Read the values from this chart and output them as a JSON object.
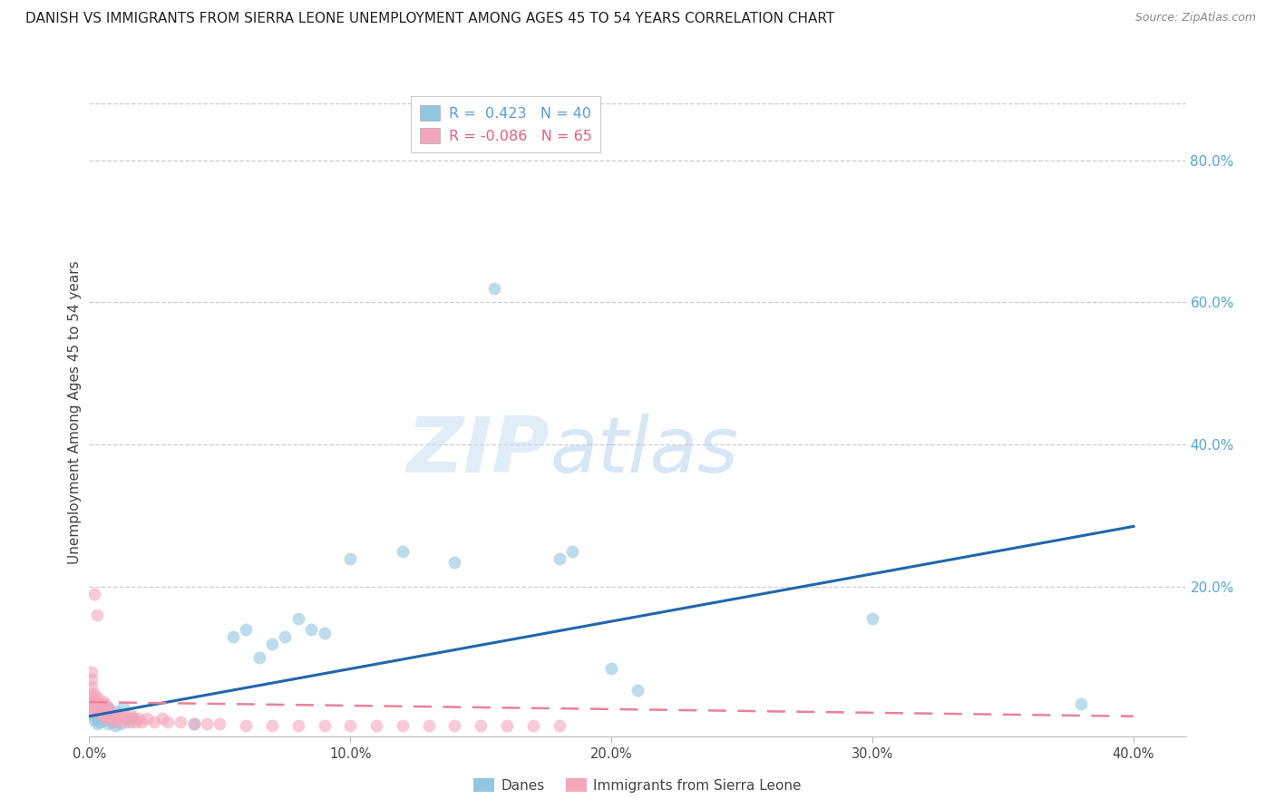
{
  "title": "DANISH VS IMMIGRANTS FROM SIERRA LEONE UNEMPLOYMENT AMONG AGES 45 TO 54 YEARS CORRELATION CHART",
  "source": "Source: ZipAtlas.com",
  "ylabel": "Unemployment Among Ages 45 to 54 years",
  "xlim": [
    0.0,
    0.42
  ],
  "ylim": [
    -0.01,
    0.9
  ],
  "xticks": [
    0.0,
    0.1,
    0.2,
    0.3,
    0.4
  ],
  "xtick_labels": [
    "0.0%",
    "10.0%",
    "20.0%",
    "30.0%",
    "40.0%"
  ],
  "right_yticks": [
    0.2,
    0.4,
    0.6,
    0.8
  ],
  "right_ytick_labels": [
    "20.0%",
    "40.0%",
    "60.0%",
    "80.0%"
  ],
  "blue_color": "#92c5de",
  "pink_color": "#f4a6bb",
  "blue_line_color": "#2166ac",
  "pink_line_color": "#e8819a",
  "right_axis_color": "#5ba3d0",
  "watermark_zip": "ZIP",
  "watermark_atlas": "atlas",
  "legend_R_blue": "R =  0.423",
  "legend_N_blue": "N = 40",
  "legend_R_pink": "R = -0.086",
  "legend_N_pink": "N = 65",
  "label_danes": "Danes",
  "label_immigrants": "Immigrants from Sierra Leone",
  "danes_x": [
    0.001,
    0.002,
    0.003,
    0.003,
    0.004,
    0.005,
    0.005,
    0.006,
    0.006,
    0.007,
    0.007,
    0.008,
    0.009,
    0.01,
    0.01,
    0.011,
    0.012,
    0.013,
    0.015,
    0.016,
    0.017,
    0.04,
    0.055,
    0.06,
    0.065,
    0.07,
    0.075,
    0.08,
    0.085,
    0.09,
    0.1,
    0.12,
    0.14,
    0.155,
    0.18,
    0.185,
    0.2,
    0.21,
    0.3,
    0.38
  ],
  "danes_y": [
    0.02,
    0.012,
    0.008,
    0.015,
    0.01,
    0.018,
    0.025,
    0.012,
    0.02,
    0.008,
    0.03,
    0.015,
    0.01,
    0.025,
    0.005,
    0.02,
    0.008,
    0.03,
    0.015,
    0.01,
    0.015,
    0.008,
    0.13,
    0.14,
    0.1,
    0.12,
    0.13,
    0.155,
    0.14,
    0.135,
    0.24,
    0.25,
    0.235,
    0.62,
    0.24,
    0.25,
    0.085,
    0.055,
    0.155,
    0.035
  ],
  "immigrants_x": [
    0.001,
    0.001,
    0.001,
    0.001,
    0.001,
    0.001,
    0.001,
    0.001,
    0.002,
    0.002,
    0.002,
    0.002,
    0.002,
    0.003,
    0.003,
    0.003,
    0.003,
    0.004,
    0.004,
    0.004,
    0.005,
    0.005,
    0.005,
    0.006,
    0.006,
    0.006,
    0.007,
    0.007,
    0.008,
    0.008,
    0.009,
    0.009,
    0.01,
    0.01,
    0.011,
    0.012,
    0.013,
    0.014,
    0.015,
    0.016,
    0.017,
    0.018,
    0.019,
    0.02,
    0.022,
    0.025,
    0.028,
    0.03,
    0.035,
    0.04,
    0.045,
    0.05,
    0.06,
    0.07,
    0.08,
    0.09,
    0.1,
    0.11,
    0.12,
    0.13,
    0.14,
    0.15,
    0.16,
    0.17,
    0.18
  ],
  "immigrants_y": [
    0.03,
    0.035,
    0.04,
    0.045,
    0.05,
    0.06,
    0.07,
    0.08,
    0.025,
    0.03,
    0.04,
    0.05,
    0.19,
    0.025,
    0.035,
    0.045,
    0.16,
    0.025,
    0.03,
    0.035,
    0.02,
    0.03,
    0.04,
    0.015,
    0.025,
    0.035,
    0.02,
    0.03,
    0.015,
    0.025,
    0.015,
    0.02,
    0.01,
    0.02,
    0.015,
    0.02,
    0.015,
    0.01,
    0.015,
    0.02,
    0.015,
    0.01,
    0.015,
    0.01,
    0.015,
    0.01,
    0.015,
    0.01,
    0.01,
    0.008,
    0.008,
    0.008,
    0.005,
    0.005,
    0.005,
    0.005,
    0.005,
    0.005,
    0.005,
    0.005,
    0.005,
    0.005,
    0.005,
    0.005,
    0.005
  ],
  "blue_line_x": [
    0.0,
    0.4
  ],
  "blue_line_y": [
    0.018,
    0.285
  ],
  "pink_line_x": [
    0.0,
    0.4
  ],
  "pink_line_y": [
    0.038,
    0.018
  ]
}
